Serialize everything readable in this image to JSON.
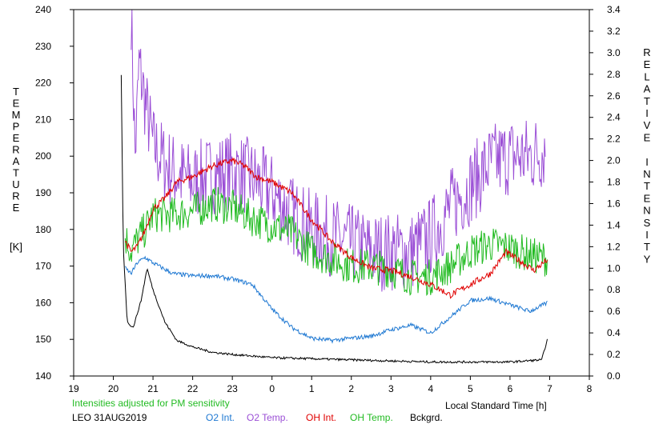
{
  "chart_data": {
    "type": "line",
    "title": "",
    "xlabel": "Local Standard Time [h]",
    "ylabel_left_letters": [
      "T",
      "E",
      "M",
      "P",
      "E",
      "R",
      "A",
      "T",
      "U",
      "R",
      "E"
    ],
    "ylabel_left_unit": "[K]",
    "ylabel_right_letters": [
      "R",
      "E",
      "L",
      "A",
      "T",
      "I",
      "V",
      "E",
      "",
      "I",
      "N",
      "T",
      "E",
      "N",
      "S",
      "I",
      "T",
      "Y"
    ],
    "x_ticks": [
      "19",
      "20",
      "21",
      "22",
      "23",
      "0",
      "1",
      "2",
      "3",
      "4",
      "5",
      "6",
      "7",
      "8"
    ],
    "xlim": [
      19,
      32
    ],
    "y_left_ticks": [
      "140",
      "150",
      "160",
      "170",
      "180",
      "190",
      "200",
      "210",
      "220",
      "230",
      "240"
    ],
    "ylim_left": [
      140,
      240
    ],
    "y_right_ticks": [
      "0.0",
      "0.2",
      "0.4",
      "0.6",
      "0.8",
      "1.0",
      "1.2",
      "1.4",
      "1.6",
      "1.8",
      "2.0",
      "2.2",
      "2.4",
      "2.6",
      "2.8",
      "3.0",
      "3.2",
      "3.4"
    ],
    "ylim_right": [
      0,
      3.4
    ],
    "note": "Intensities adjusted for PM sensitivity",
    "station": "LEO 31AUG2019",
    "legend": [
      {
        "label": "O2 Int.",
        "color": "#1e78d2"
      },
      {
        "label": "O2 Temp.",
        "color": "#9b4fd6"
      },
      {
        "label": "OH Int.",
        "color": "#e00000"
      },
      {
        "label": "OH Temp.",
        "color": "#22bb22"
      },
      {
        "label": "Bckgrd.",
        "color": "#000000"
      }
    ],
    "series": [
      {
        "name": "O2 Temp.",
        "axis": "left",
        "color": "#9b4fd6",
        "noise": 11,
        "points": [
          [
            20.45,
            240
          ],
          [
            20.55,
            200
          ],
          [
            20.65,
            225
          ],
          [
            20.8,
            215
          ],
          [
            21.0,
            203
          ],
          [
            21.3,
            198
          ],
          [
            21.6,
            195
          ],
          [
            22.0,
            193
          ],
          [
            22.5,
            195
          ],
          [
            23.0,
            196
          ],
          [
            23.5,
            194
          ],
          [
            24.0,
            190
          ],
          [
            24.5,
            184
          ],
          [
            25.0,
            180
          ],
          [
            25.5,
            178
          ],
          [
            26.0,
            176
          ],
          [
            26.5,
            174
          ],
          [
            27.0,
            174
          ],
          [
            27.5,
            174
          ],
          [
            28.0,
            178
          ],
          [
            28.5,
            186
          ],
          [
            29.0,
            192
          ],
          [
            29.5,
            198
          ],
          [
            30.0,
            200
          ],
          [
            30.5,
            200
          ],
          [
            30.9,
            202
          ]
        ]
      },
      {
        "name": "OH Temp.",
        "axis": "left",
        "color": "#22bb22",
        "noise": 5,
        "points": [
          [
            20.3,
            178
          ],
          [
            20.45,
            174
          ],
          [
            20.6,
            177
          ],
          [
            20.8,
            180
          ],
          [
            21.0,
            184
          ],
          [
            21.5,
            184
          ],
          [
            22.0,
            185
          ],
          [
            22.5,
            187
          ],
          [
            23.0,
            186
          ],
          [
            23.5,
            183
          ],
          [
            24.0,
            181
          ],
          [
            24.5,
            179
          ],
          [
            25.0,
            174
          ],
          [
            25.5,
            172
          ],
          [
            26.0,
            170
          ],
          [
            26.5,
            170
          ],
          [
            27.0,
            169
          ],
          [
            27.5,
            167
          ],
          [
            28.0,
            167
          ],
          [
            28.5,
            170
          ],
          [
            29.0,
            174
          ],
          [
            29.5,
            176
          ],
          [
            30.0,
            175
          ],
          [
            30.5,
            173
          ],
          [
            30.95,
            172
          ]
        ]
      },
      {
        "name": "OH Int.",
        "axis": "right",
        "color": "#e00000",
        "noise": 0.03,
        "points": [
          [
            20.3,
            1.25
          ],
          [
            20.45,
            1.15
          ],
          [
            20.6,
            1.2
          ],
          [
            20.8,
            1.35
          ],
          [
            21.0,
            1.55
          ],
          [
            21.3,
            1.65
          ],
          [
            21.6,
            1.8
          ],
          [
            22.0,
            1.85
          ],
          [
            22.5,
            1.95
          ],
          [
            23.0,
            2.0
          ],
          [
            23.3,
            1.95
          ],
          [
            23.6,
            1.85
          ],
          [
            24.0,
            1.8
          ],
          [
            24.5,
            1.7
          ],
          [
            25.0,
            1.45
          ],
          [
            25.5,
            1.25
          ],
          [
            26.0,
            1.1
          ],
          [
            26.5,
            1.0
          ],
          [
            27.0,
            0.98
          ],
          [
            27.5,
            0.92
          ],
          [
            28.0,
            0.85
          ],
          [
            28.5,
            0.75
          ],
          [
            29.0,
            0.85
          ],
          [
            29.5,
            0.95
          ],
          [
            29.9,
            1.15
          ],
          [
            30.2,
            1.08
          ],
          [
            30.6,
            0.98
          ],
          [
            30.95,
            1.08
          ]
        ]
      },
      {
        "name": "O2 Int.",
        "axis": "right",
        "color": "#1e78d2",
        "noise": 0.02,
        "points": [
          [
            20.3,
            1.0
          ],
          [
            20.45,
            0.95
          ],
          [
            20.6,
            1.05
          ],
          [
            20.8,
            1.1
          ],
          [
            21.0,
            1.05
          ],
          [
            21.5,
            0.95
          ],
          [
            22.0,
            0.93
          ],
          [
            22.5,
            0.93
          ],
          [
            23.0,
            0.9
          ],
          [
            23.5,
            0.85
          ],
          [
            24.0,
            0.62
          ],
          [
            24.5,
            0.45
          ],
          [
            25.0,
            0.35
          ],
          [
            25.5,
            0.33
          ],
          [
            26.0,
            0.35
          ],
          [
            26.5,
            0.37
          ],
          [
            27.0,
            0.43
          ],
          [
            27.5,
            0.47
          ],
          [
            28.0,
            0.4
          ],
          [
            28.5,
            0.55
          ],
          [
            29.0,
            0.7
          ],
          [
            29.5,
            0.72
          ],
          [
            30.0,
            0.66
          ],
          [
            30.5,
            0.6
          ],
          [
            30.95,
            0.68
          ]
        ]
      },
      {
        "name": "Bckgrd.",
        "axis": "right",
        "color": "#000000",
        "noise": 0.01,
        "points": [
          [
            20.2,
            2.8
          ],
          [
            20.25,
            1.2
          ],
          [
            20.35,
            0.5
          ],
          [
            20.5,
            0.45
          ],
          [
            20.7,
            0.7
          ],
          [
            20.85,
            1.0
          ],
          [
            21.0,
            0.8
          ],
          [
            21.3,
            0.5
          ],
          [
            21.6,
            0.33
          ],
          [
            22.0,
            0.27
          ],
          [
            22.5,
            0.22
          ],
          [
            23.0,
            0.2
          ],
          [
            24.0,
            0.17
          ],
          [
            25.0,
            0.16
          ],
          [
            26.0,
            0.15
          ],
          [
            27.0,
            0.14
          ],
          [
            28.0,
            0.13
          ],
          [
            29.0,
            0.13
          ],
          [
            30.0,
            0.13
          ],
          [
            30.8,
            0.15
          ],
          [
            30.95,
            0.35
          ]
        ]
      }
    ]
  }
}
